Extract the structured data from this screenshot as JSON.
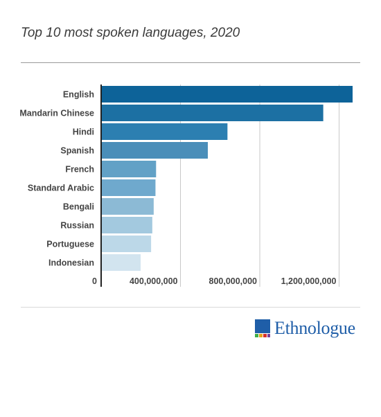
{
  "title": "Top 10 most spoken languages, 2020",
  "brand": {
    "name": "Ethnologue",
    "color": "#1f5ea8"
  },
  "chart_data": {
    "type": "bar",
    "orientation": "horizontal",
    "title": "Top 10 most spoken languages, 2020",
    "categories": [
      "English",
      "Mandarin Chinese",
      "Hindi",
      "Spanish",
      "French",
      "Standard Arabic",
      "Bengali",
      "Russian",
      "Portuguese",
      "Indonesian"
    ],
    "values": [
      1268000000,
      1120000000,
      637000000,
      538000000,
      277000000,
      274000000,
      265000000,
      258000000,
      252000000,
      199000000
    ],
    "xticks": [
      "0",
      "400,000,000",
      "800,000,000",
      "1,200,000,000"
    ],
    "xtick_values": [
      0,
      400000000,
      800000000,
      1200000000
    ],
    "xlim": [
      0,
      1275000000
    ],
    "grid": true,
    "colors": [
      "#0d6399",
      "#1c70a3",
      "#2c7fb1",
      "#4a8eb9",
      "#62a1c6",
      "#6fa9cd",
      "#8cbad5",
      "#a3c9df",
      "#bcd8e8",
      "#d2e4ef"
    ]
  }
}
